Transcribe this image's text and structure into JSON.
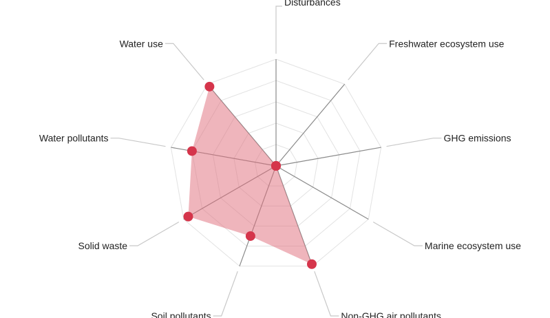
{
  "chart_data": {
    "type": "radar",
    "title": "",
    "axes": [
      "Disturbances",
      "Freshwater ecosystem use",
      "GHG emissions",
      "Marine ecosystem use",
      "Non-GHG air pollutants",
      "Soil pollutants",
      "Solid waste",
      "Water pollutants",
      "Water use"
    ],
    "series": [
      {
        "values": [
          0,
          0,
          0,
          0,
          0.98,
          0.7,
          0.95,
          0.8,
          0.97
        ]
      }
    ],
    "range": [
      0,
      1
    ],
    "grid_levels": 5,
    "legend": "none",
    "colors": {
      "fill": "#e06b7a",
      "fill_opacity": 0.5,
      "point": "#d5354b",
      "ring": "#e2e2e2",
      "spoke": "#8a8a8a",
      "leader": "#c8c8c8",
      "text": "#222222"
    }
  }
}
